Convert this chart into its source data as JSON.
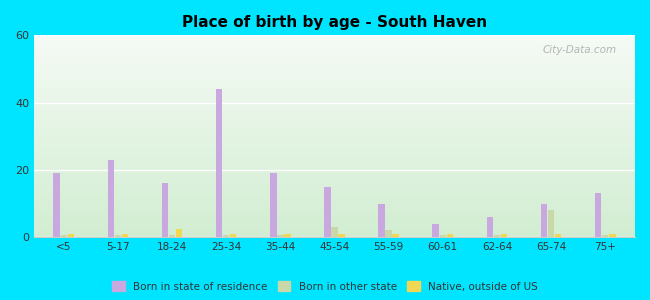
{
  "title": "Place of birth by age - South Haven",
  "categories": [
    "<5",
    "5-17",
    "18-24",
    "25-34",
    "35-44",
    "45-54",
    "55-59",
    "60-61",
    "62-64",
    "65-74",
    "75+"
  ],
  "born_in_state": [
    19,
    23,
    16,
    44,
    19,
    15,
    10,
    4,
    6,
    10,
    13
  ],
  "born_other_state": [
    0.5,
    0.5,
    0.5,
    0.5,
    0.5,
    3,
    2,
    0.5,
    0.5,
    8,
    0.5
  ],
  "native_outside_us": [
    1,
    1,
    2.5,
    1,
    1,
    1,
    1,
    1,
    1,
    1,
    1
  ],
  "bar_color_state": "#c9a8e0",
  "bar_color_other": "#c8d8a8",
  "bar_color_native": "#f0d855",
  "background_outer": "#00e5ff",
  "ylim": [
    0,
    60
  ],
  "yticks": [
    0,
    20,
    40,
    60
  ],
  "watermark": "City-Data.com",
  "legend_labels": [
    "Born in state of residence",
    "Born in other state",
    "Native, outside of US"
  ],
  "bar_width": 0.12,
  "bar_spacing": 0.13
}
